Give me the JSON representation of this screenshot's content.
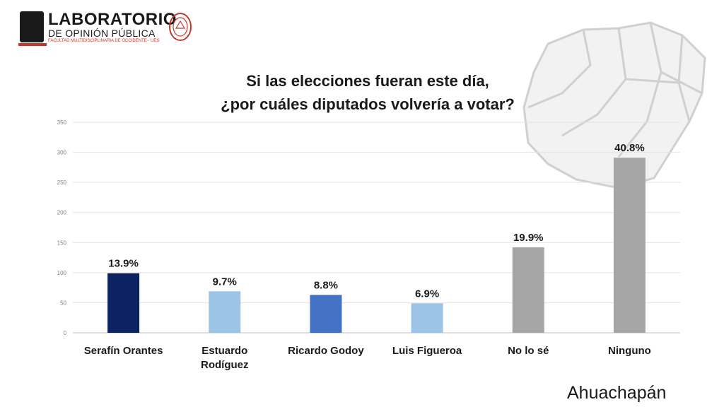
{
  "logo": {
    "title": "LABORATORIO",
    "subtitle": "DE OPINIÓN PÚBLICA",
    "small": "FACULTAD MULTIDISCIPLINARIA DE OCCIDENTE - UES"
  },
  "region": "Ahuachapán",
  "chart_data": {
    "type": "bar",
    "title": [
      "Si las elecciones fueran este día,",
      "¿por cuáles diputados volvería a votar?"
    ],
    "categories": [
      [
        "Serafín Orantes"
      ],
      [
        "Estuardo",
        "Rodíguez"
      ],
      [
        "Ricardo Godoy"
      ],
      [
        "Luis Figueroa"
      ],
      [
        "No lo sé"
      ],
      [
        "Ninguno"
      ]
    ],
    "values": [
      99,
      69,
      63,
      49,
      142,
      291
    ],
    "labels": [
      "13.9%",
      "9.7%",
      "8.8%",
      "6.9%",
      "19.9%",
      "40.8%"
    ],
    "colors": [
      "#0d2260",
      "#9dc3e6",
      "#4472c4",
      "#9dc3e6",
      "#a6a6a6",
      "#a6a6a6"
    ],
    "ylim": [
      0,
      350
    ],
    "yticks": [
      0,
      50,
      100,
      150,
      200,
      250,
      300,
      350
    ],
    "grid": true,
    "legend": "none",
    "xlabel": "",
    "ylabel": ""
  }
}
